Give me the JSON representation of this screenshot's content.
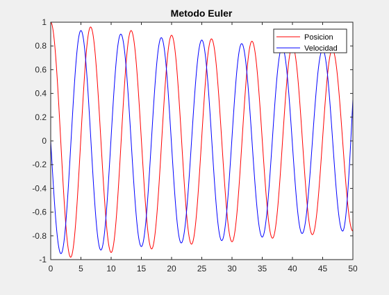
{
  "chart_data": {
    "type": "line",
    "title": "Metodo Euler",
    "xlabel": "",
    "ylabel": "",
    "xlim": [
      0,
      50
    ],
    "ylim": [
      -1,
      1
    ],
    "x_ticks": [
      0,
      5,
      10,
      15,
      20,
      25,
      30,
      35,
      40,
      45,
      50
    ],
    "x_tick_labels": [
      "0",
      "5",
      "10",
      "15",
      "20",
      "25",
      "30",
      "35",
      "40",
      "45",
      "50"
    ],
    "y_ticks": [
      -1,
      -0.8,
      -0.6,
      -0.4,
      -0.2,
      0,
      0.2,
      0.4,
      0.6,
      0.8,
      1
    ],
    "y_tick_labels": [
      "-1",
      "-0.8",
      "-0.6",
      "-0.4",
      "-0.2",
      "0",
      "0.2",
      "0.4",
      "0.6",
      "0.8",
      "1"
    ],
    "grid": false,
    "legend_position": "top-right",
    "series": [
      {
        "name": "Posicion",
        "color": "#ff0000",
        "start_value": 1,
        "peaks": [
          {
            "x": 0,
            "y": 1
          },
          {
            "x": 3.3,
            "y": -0.98
          },
          {
            "x": 6.6,
            "y": 0.96
          },
          {
            "x": 10.0,
            "y": -0.94
          },
          {
            "x": 13.3,
            "y": 0.93
          },
          {
            "x": 16.7,
            "y": -0.91
          },
          {
            "x": 20.0,
            "y": 0.89
          },
          {
            "x": 23.3,
            "y": -0.87
          },
          {
            "x": 26.6,
            "y": 0.86
          },
          {
            "x": 30.0,
            "y": -0.85
          },
          {
            "x": 33.3,
            "y": 0.84
          },
          {
            "x": 36.7,
            "y": -0.82
          },
          {
            "x": 40.0,
            "y": 0.8
          },
          {
            "x": 43.3,
            "y": -0.79
          },
          {
            "x": 46.6,
            "y": 0.77
          },
          {
            "x": 50.0,
            "y": -0.76
          }
        ],
        "end_value": -0.76
      },
      {
        "name": "Velocidad",
        "color": "#0000ff",
        "start_value": 0,
        "peaks": [
          {
            "x": 1.7,
            "y": -0.95
          },
          {
            "x": 5.0,
            "y": 0.93
          },
          {
            "x": 8.3,
            "y": -0.92
          },
          {
            "x": 11.6,
            "y": 0.9
          },
          {
            "x": 15.0,
            "y": -0.89
          },
          {
            "x": 18.3,
            "y": 0.87
          },
          {
            "x": 21.6,
            "y": -0.86
          },
          {
            "x": 25.0,
            "y": 0.85
          },
          {
            "x": 28.3,
            "y": -0.84
          },
          {
            "x": 31.6,
            "y": 0.82
          },
          {
            "x": 35.0,
            "y": -0.81
          },
          {
            "x": 38.3,
            "y": 0.79
          },
          {
            "x": 41.6,
            "y": -0.78
          },
          {
            "x": 45.0,
            "y": 0.77
          },
          {
            "x": 48.3,
            "y": -0.76
          }
        ],
        "end_value": 0.35
      }
    ]
  }
}
